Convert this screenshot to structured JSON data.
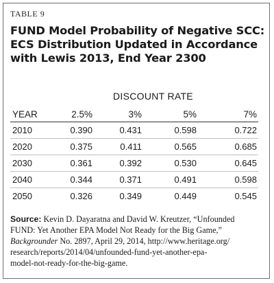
{
  "table_label": "TABLE 9",
  "title_lines": [
    "FUND Model Probability of Negative SCC:",
    "ECS Distribution Updated in Accordance",
    "with Lewis 2013, End Year 2300"
  ],
  "discount_rate_header": "DISCOUNT RATE",
  "columns": [
    "YEAR",
    "2.5%",
    "3%",
    "5%",
    "7%"
  ],
  "rows": [
    [
      "2010",
      "0.390",
      "0.431",
      "0.598",
      "0.722"
    ],
    [
      "2020",
      "0.375",
      "0.411",
      "0.565",
      "0.685"
    ],
    [
      "2030",
      "0.361",
      "0.392",
      "0.530",
      "0.645"
    ],
    [
      "2040",
      "0.344",
      "0.371",
      "0.491",
      "0.598"
    ],
    [
      "2050",
      "0.326",
      "0.349",
      "0.449",
      "0.545"
    ]
  ],
  "source": {
    "label": "Source:",
    "line1_rest": " Kevin D. Dayaratna and David W. Kreutzer, “Unfounded",
    "line2": "FUND: Yet Another EPA Model Not Ready for the Big Game,”",
    "line3_italic": "Backgrounder",
    "line3_rest": " No. 2897, April 29, 2014, http://www.heritage.org/",
    "line4": "research/reports/2014/04/unfounded-fund-yet-another-epa-",
    "line5": "model-not-ready-for-the-big-game."
  }
}
